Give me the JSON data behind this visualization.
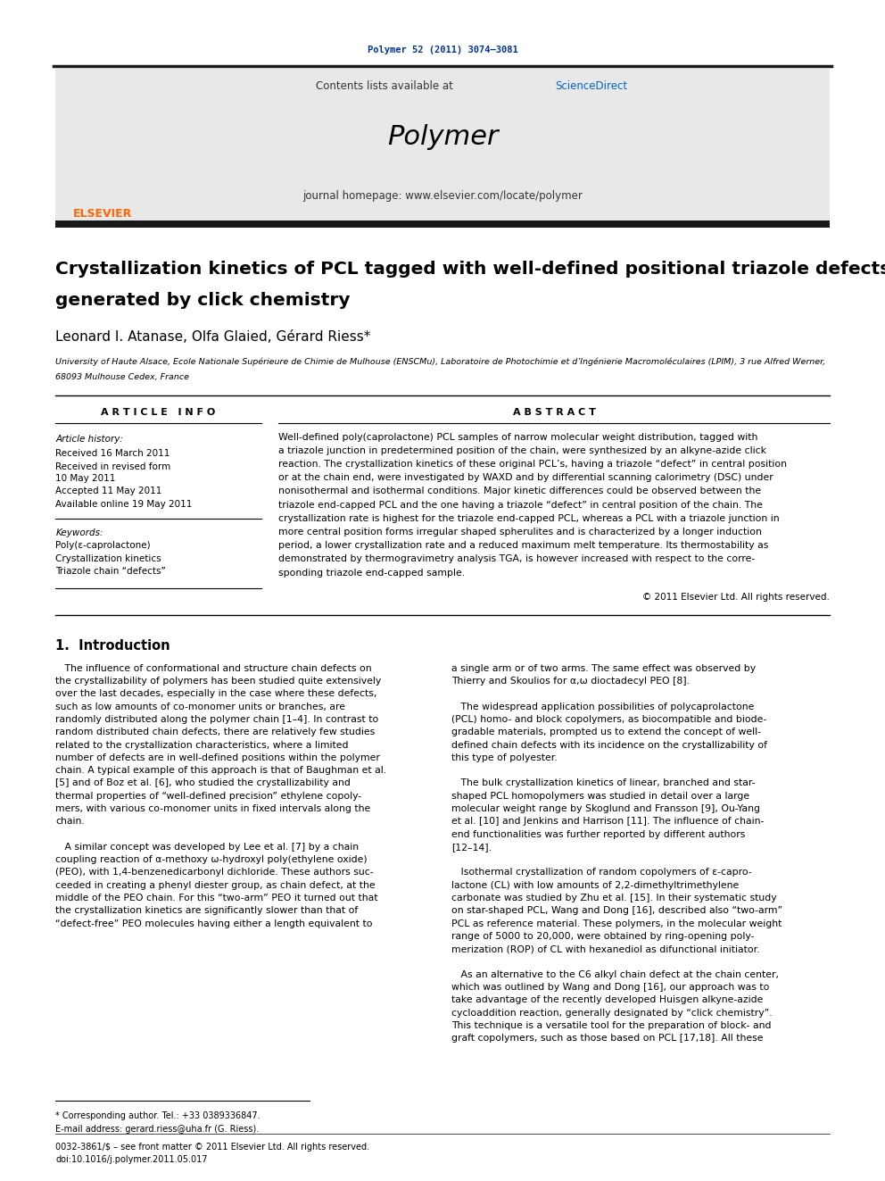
{
  "journal_ref": "Polymer 52 (2011) 3074–3081",
  "journal_ref_color": "#003399",
  "contents_text": "Contents lists available at ",
  "sciencedirect_text": "ScienceDirect",
  "sciencedirect_color": "#0066cc",
  "journal_name": "Polymer",
  "journal_homepage": "journal homepage: www.elsevier.com/locate/polymer",
  "header_bg": "#e8e8e8",
  "thick_line_color": "#1a1a1a",
  "orange_elsevier": "#FF6600",
  "title_line1": "Crystallization kinetics of PCL tagged with well-defined positional triazole defects",
  "title_line2": "generated by click chemistry",
  "authors": "Leonard I. Atanase, Olfa Glaied, Gérard Riess*",
  "aff_line1": "University of Haute Alsace, Ecole Nationale Supérieure de Chimie de Mulhouse (ENSCMu), Laboratoire de Photochimie et d’Ingénierie Macromoléculaires (LPIM), 3 rue Alfred Werner,",
  "aff_line2": "68093 Mulhouse Cedex, France",
  "article_info_title": "A R T I C L E   I N F O",
  "abstract_title": "A B S T R A C T",
  "article_history_label": "Article history:",
  "received1": "Received 16 March 2011",
  "received2": "Received in revised form",
  "received2b": "10 May 2011",
  "accepted": "Accepted 11 May 2011",
  "available": "Available online 19 May 2011",
  "keywords_label": "Keywords:",
  "keyword1": "Poly(ε-caprolactone)",
  "keyword2": "Crystallization kinetics",
  "keyword3": "Triazole chain “defects”",
  "abs_lines": [
    "Well-defined poly(caprolactone) PCL samples of narrow molecular weight distribution, tagged with",
    "a triazole junction in predetermined position of the chain, were synthesized by an alkyne-azide click",
    "reaction. The crystallization kinetics of these original PCL’s, having a triazole “defect” in central position",
    "or at the chain end, were investigated by WAXD and by differential scanning calorimetry (DSC) under",
    "nonisothermal and isothermal conditions. Major kinetic differences could be observed between the",
    "triazole end-capped PCL and the one having a triazole “defect” in central position of the chain. The",
    "crystallization rate is highest for the triazole end-capped PCL, whereas a PCL with a triazole junction in",
    "more central position forms irregular shaped spherulites and is characterized by a longer induction",
    "period, a lower crystallization rate and a reduced maximum melt temperature. Its thermostability as",
    "demonstrated by thermogravimetry analysis TGA, is however increased with respect to the corre-",
    "sponding triazole end-capped sample."
  ],
  "copyright": "© 2011 Elsevier Ltd. All rights reserved.",
  "intro_title": "1.  Introduction",
  "intro_text_a": [
    "   The influence of conformational and structure chain defects on",
    "the crystallizability of polymers has been studied quite extensively",
    "over the last decades, especially in the case where these defects,",
    "such as low amounts of co-monomer units or branches, are",
    "randomly distributed along the polymer chain [1–4]. In contrast to",
    "random distributed chain defects, there are relatively few studies",
    "related to the crystallization characteristics, where a limited",
    "number of defects are in well-defined positions within the polymer",
    "chain. A typical example of this approach is that of Baughman et al.",
    "[5] and of Boz et al. [6], who studied the crystallizability and",
    "thermal properties of “well-defined precision” ethylene copoly-",
    "mers, with various co-monomer units in fixed intervals along the",
    "chain.",
    "",
    "   A similar concept was developed by Lee et al. [7] by a chain",
    "coupling reaction of α-methoxy ω-hydroxyl poly(ethylene oxide)",
    "(PEO), with 1,4-benzenedicarbonyl dichloride. These authors suc-",
    "ceeded in creating a phenyl diester group, as chain defect, at the",
    "middle of the PEO chain. For this “two-arm” PEO it turned out that",
    "the crystallization kinetics are significantly slower than that of",
    "“defect-free” PEO molecules having either a length equivalent to"
  ],
  "intro_text_b": [
    "a single arm or of two arms. The same effect was observed by",
    "Thierry and Skoulios for α,ω dioctadecyl PEO [8].",
    "",
    "   The widespread application possibilities of polycaprolactone",
    "(PCL) homo- and block copolymers, as biocompatible and biode-",
    "gradable materials, prompted us to extend the concept of well-",
    "defined chain defects with its incidence on the crystallizability of",
    "this type of polyester.",
    "",
    "   The bulk crystallization kinetics of linear, branched and star-",
    "shaped PCL homopolymers was studied in detail over a large",
    "molecular weight range by Skoglund and Fransson [9], Ou-Yang",
    "et al. [10] and Jenkins and Harrison [11]. The influence of chain-",
    "end functionalities was further reported by different authors",
    "[12–14].",
    "",
    "   Isothermal crystallization of random copolymers of ε-capro-",
    "lactone (CL) with low amounts of 2,2-dimethyltrimethylene",
    "carbonate was studied by Zhu et al. [15]. In their systematic study",
    "on star-shaped PCL, Wang and Dong [16], described also “two-arm”",
    "PCL as reference material. These polymers, in the molecular weight",
    "range of 5000 to 20,000, were obtained by ring-opening poly-",
    "merization (ROP) of CL with hexanediol as difunctional initiator.",
    "",
    "   As an alternative to the C6 alkyl chain defect at the chain center,",
    "which was outlined by Wang and Dong [16], our approach was to",
    "take advantage of the recently developed Huisgen alkyne-azide",
    "cycloaddition reaction, generally designated by “click chemistry”.",
    "This technique is a versatile tool for the preparation of block- and",
    "graft copolymers, such as those based on PCL [17,18]. All these"
  ],
  "footnote1": "* Corresponding author. Tel.: +33 0389336847.",
  "footnote2": "E-mail address: gerard.riess@uha.fr (G. Riess).",
  "footnote3": "0032-3861/$ – see front matter © 2011 Elsevier Ltd. All rights reserved.",
  "footnote4": "doi:10.1016/j.polymer.2011.05.017",
  "bg_color": "#ffffff",
  "text_color": "#000000"
}
